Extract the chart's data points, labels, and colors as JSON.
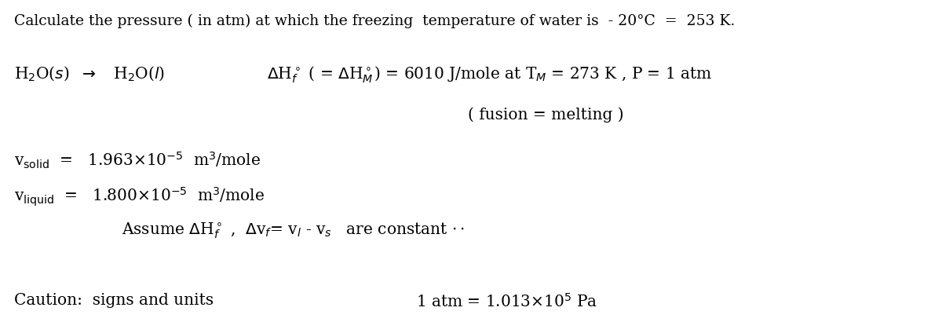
{
  "bg_color": "#ffffff",
  "text_color": "#000000",
  "figsize": [
    12.0,
    4.24
  ],
  "dpi": 100,
  "lines": {
    "title": "Calculate the pressure ( in atm) at which the freezing  temperature of water is  - 20°C  =  253 K.",
    "row1a": "H$_2$O($\\it{s}$)  $\\rightarrow$   H$_2$O($\\it{l}$)",
    "row1b": "$\\Delta$H$^\\circ_f$ ( = $\\Delta$H$^\\circ_M$) = 6010 J/mole at T$_M$ = 273 K , P = 1 atm",
    "row2": "( fusion = melting )",
    "row3": "v$_{\\rm solid}$  =   1.963×10$^{-5}$  m$^3$/mole",
    "row4": "v$_{\\rm liquid}$  =   1.800×10$^{-5}$  m$^3$/mole",
    "row5": "Assume $\\Delta$H$^\\circ_f$ ,  $\\Delta$v$_f$= v$_l$ - v$_s$   are constant $\\cdot\\cdot$",
    "row6a": "Caution:  signs and units",
    "row6b": "1 atm = 1.013×10$^5$ Pa"
  },
  "font_size_title": 13.5,
  "font_size_body": 14.5
}
